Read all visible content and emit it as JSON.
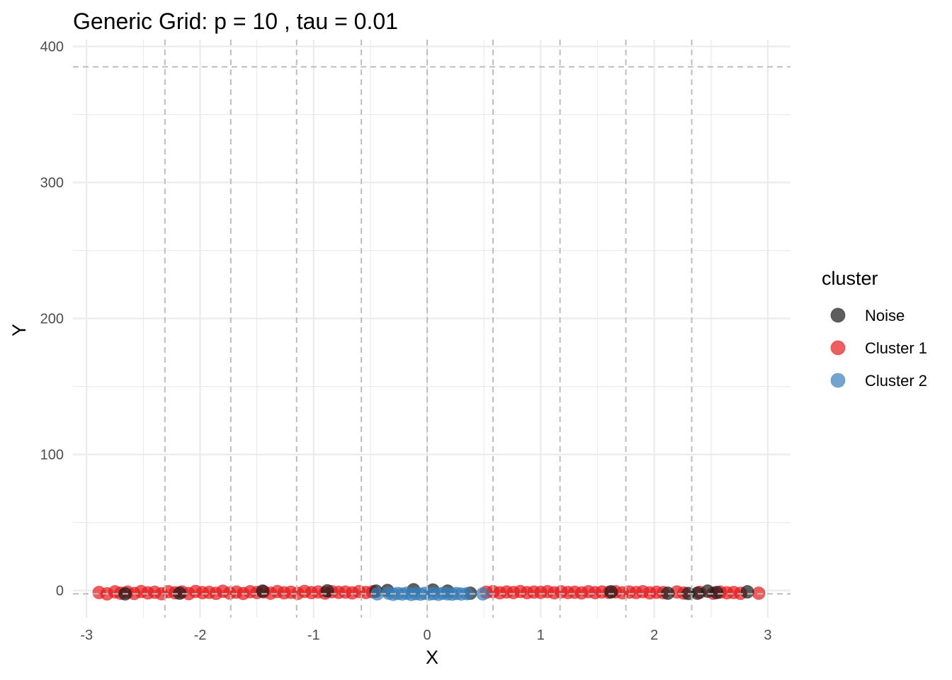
{
  "chart_data": {
    "type": "scatter",
    "title": "Generic Grid: p = 10 , tau = 0.01",
    "xlabel": "X",
    "ylabel": "Y",
    "xlim": [
      -3.12,
      3.2
    ],
    "ylim": [
      -20,
      405
    ],
    "x_ticks": [
      -3,
      -2,
      -1,
      0,
      1,
      2,
      3
    ],
    "x_tick_labels": [
      "-3",
      "-2",
      "-1",
      "0",
      "1",
      "2",
      "3"
    ],
    "y_ticks": [
      0,
      100,
      200,
      300,
      400
    ],
    "y_tick_labels": [
      "0",
      "100",
      "200",
      "300",
      "400"
    ],
    "grid": true,
    "grid_lines_x": [
      -2.31,
      -1.73,
      -1.15,
      -0.58,
      0.0,
      0.58,
      1.17,
      1.75,
      2.33
    ],
    "grid_lines_y": [
      -2.5,
      385
    ],
    "legend": {
      "title": "cluster",
      "position": "right",
      "entries": [
        {
          "label": "Noise",
          "color": "#1a1a1a"
        },
        {
          "label": "Cluster 1",
          "color": "#e41a1c"
        },
        {
          "label": "Cluster 2",
          "color": "#377eb8"
        }
      ]
    },
    "series": [
      {
        "name": "Cluster 1",
        "color": "#e41a1c",
        "x": [
          -2.89,
          -2.82,
          -2.75,
          -2.7,
          -2.64,
          -2.58,
          -2.52,
          -2.46,
          -2.4,
          -2.34,
          -2.28,
          -2.22,
          -2.16,
          -2.1,
          -2.04,
          -1.98,
          -1.92,
          -1.86,
          -1.8,
          -1.74,
          -1.68,
          -1.62,
          -1.56,
          -1.5,
          -1.44,
          -1.38,
          -1.32,
          -1.26,
          -1.2,
          -1.14,
          -1.08,
          -1.02,
          -0.96,
          -0.9,
          -0.84,
          -0.78,
          -0.72,
          -0.66,
          -0.6,
          -0.54,
          -0.48,
          0.52,
          0.58,
          0.64,
          0.7,
          0.76,
          0.82,
          0.88,
          0.94,
          1.0,
          1.06,
          1.12,
          1.18,
          1.24,
          1.3,
          1.36,
          1.42,
          1.48,
          1.54,
          1.6,
          1.66,
          1.72,
          1.78,
          1.84,
          1.9,
          1.96,
          2.02,
          2.08,
          2.2,
          2.26,
          2.4,
          2.52,
          2.58,
          2.64,
          2.7,
          2.76,
          2.92
        ],
        "y": [
          -1.5,
          -2.5,
          -1.0,
          -2.0,
          -1.2,
          -2.2,
          -0.8,
          -1.8,
          -1.3,
          -2.4,
          -0.9,
          -1.7,
          -1.1,
          -2.3,
          -0.7,
          -1.6,
          -1.4,
          -2.1,
          -0.6,
          -1.9,
          -1.2,
          -2.2,
          -0.9,
          -1.5,
          -1.0,
          -2.0,
          -0.8,
          -1.7,
          -1.3,
          -2.1,
          -0.7,
          -1.6,
          -1.1,
          -1.9,
          -0.9,
          -1.4,
          -1.2,
          -1.8,
          -0.8,
          -1.5,
          -1.0,
          -1.3,
          -0.9,
          -1.7,
          -1.1,
          -1.5,
          -0.8,
          -1.6,
          -1.2,
          -1.4,
          -0.9,
          -1.7,
          -1.0,
          -1.5,
          -1.3,
          -1.8,
          -0.9,
          -1.6,
          -1.1,
          -1.4,
          -1.0,
          -1.7,
          -1.2,
          -1.5,
          -0.9,
          -1.8,
          -1.3,
          -1.6,
          -1.1,
          -1.9,
          -1.4,
          -2.0,
          -1.2,
          -1.7,
          -1.5,
          -2.1,
          -2.0
        ]
      },
      {
        "name": "Noise",
        "color": "#1a1a1a",
        "x": [
          -2.66,
          -2.18,
          -1.45,
          -0.88,
          -0.45,
          -0.35,
          -0.12,
          0.05,
          0.18,
          0.38,
          1.62,
          2.12,
          2.3,
          2.38,
          2.47,
          2.55,
          2.82
        ],
        "y": [
          -2.5,
          -2.0,
          -0.5,
          -0.3,
          -0.5,
          0.0,
          0.5,
          0.3,
          -0.5,
          -2.0,
          -1.0,
          -2.0,
          -2.2,
          -2.0,
          -0.5,
          -1.5,
          -1.0
        ]
      },
      {
        "name": "Cluster 2",
        "color": "#377eb8",
        "x": [
          -0.44,
          -0.34,
          -0.3,
          -0.26,
          -0.22,
          -0.18,
          -0.14,
          -0.1,
          -0.06,
          -0.02,
          0.02,
          0.06,
          0.1,
          0.14,
          0.18,
          0.22,
          0.26,
          0.3,
          0.35,
          0.49
        ],
        "y": [
          -2.5,
          -2.0,
          -2.8,
          -2.2,
          -2.6,
          -2.0,
          -2.9,
          -2.3,
          -2.7,
          -2.1,
          -2.6,
          -2.3,
          -2.8,
          -2.0,
          -2.5,
          -2.7,
          -2.2,
          -2.6,
          -2.4,
          -2.5
        ]
      }
    ]
  }
}
